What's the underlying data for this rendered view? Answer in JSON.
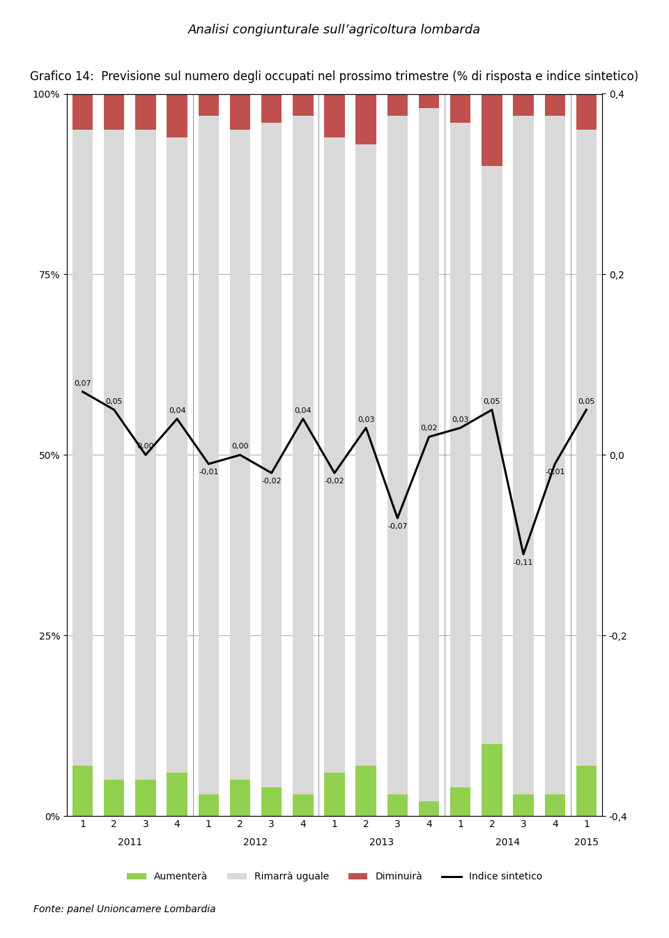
{
  "chart_data": {
    "type": "bar",
    "title": "Grafico 14:  Previsione sul numero degli occupati nel prossimo trimestre (% di risposta e indice sintetico)",
    "annotations": [
      "Analisi congiunturale sull’agricoltura lombarda",
      "Fonte: panel Unioncamere Lombardia"
    ],
    "categories": [
      "1",
      "2",
      "3",
      "4",
      "1",
      "2",
      "3",
      "4",
      "1",
      "2",
      "3",
      "4",
      "1",
      "2",
      "3",
      "4",
      "1"
    ],
    "x_groups": [
      {
        "label": "2011",
        "size": 4
      },
      {
        "label": "2012",
        "size": 4
      },
      {
        "label": "2013",
        "size": 4
      },
      {
        "label": "2014",
        "size": 4
      },
      {
        "label": "2015",
        "size": 1
      }
    ],
    "stacked": true,
    "grid": true,
    "legend": "upper center",
    "ylim": [
      0,
      100
    ],
    "yticks": [
      {
        "value": 0,
        "label": "0%"
      },
      {
        "value": 25,
        "label": "25%"
      },
      {
        "value": 50,
        "label": "50%"
      },
      {
        "value": 75,
        "label": "75%"
      },
      {
        "value": 100,
        "label": "100%"
      }
    ],
    "y2lim": [
      -0.4,
      0.4
    ],
    "y2ticks": [
      {
        "value": -0.4,
        "label": "-0,4"
      },
      {
        "value": -0.2,
        "label": "-0,2"
      },
      {
        "value": 0.0,
        "label": "0,0"
      },
      {
        "value": 0.2,
        "label": "0,2"
      },
      {
        "value": 0.4,
        "label": "0,4"
      }
    ],
    "series": [
      {
        "name": "Aumenterà",
        "color": "#92d050",
        "values": [
          7,
          5,
          5,
          6,
          3,
          5,
          4,
          3,
          6,
          7,
          3,
          2,
          4,
          10,
          3,
          3,
          7
        ]
      },
      {
        "name": "Rimarrà uguale",
        "color": "#d9d9d9",
        "values": [
          88,
          90,
          90,
          88,
          94,
          90,
          92,
          94,
          88,
          86,
          94,
          96,
          92,
          80,
          94,
          94,
          88
        ]
      },
      {
        "name": "Diminuirà",
        "color": "#c0504d",
        "values": [
          5,
          5,
          5,
          6,
          3,
          5,
          4,
          3,
          6,
          7,
          3,
          2,
          4,
          10,
          3,
          3,
          5
        ]
      },
      {
        "name": "Indice sintetico",
        "type": "line",
        "axis": "y2",
        "color": "#000000",
        "data_labels": true,
        "values": [
          0.07,
          0.05,
          0.0,
          0.04,
          -0.01,
          0.0,
          -0.02,
          0.04,
          -0.02,
          0.03,
          -0.07,
          0.02,
          0.03,
          0.05,
          -0.11,
          -0.01,
          0.05
        ],
        "value_labels": [
          "0,07",
          "0,05",
          "0,00",
          "0,04",
          "-0,01",
          "0,00",
          "-0,02",
          "0,04",
          "-0,02",
          "0,03",
          "-0,07",
          "0,02",
          "0,03",
          "0,05",
          "-0,11",
          "-0,01",
          "0,05"
        ]
      }
    ]
  }
}
